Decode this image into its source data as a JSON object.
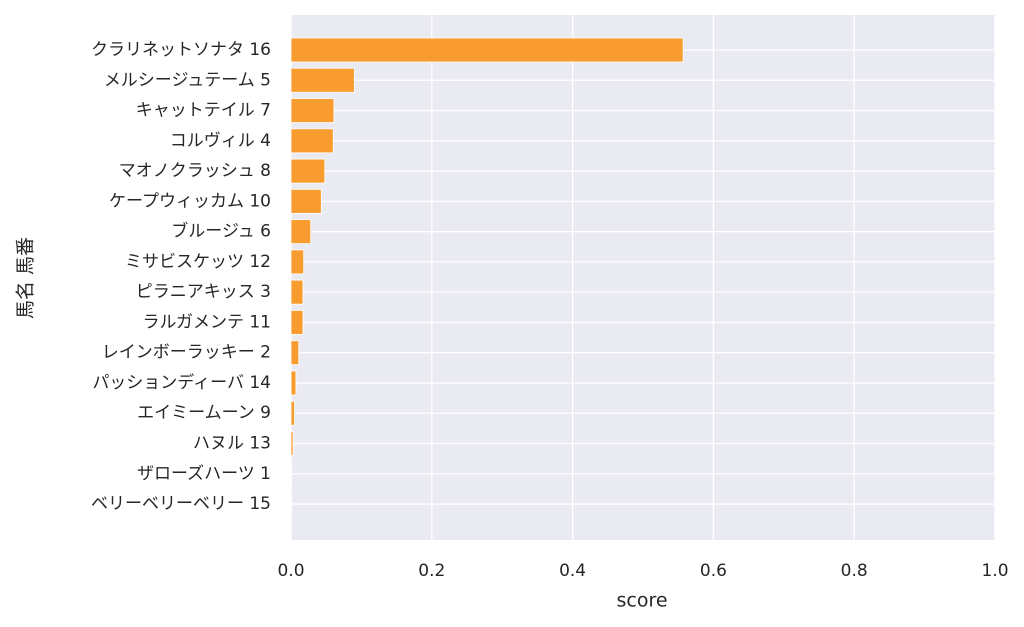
{
  "chart_data": {
    "type": "barh",
    "xlabel": "score",
    "ylabel": "馬名 馬番",
    "categories": [
      "クラリネットソナタ 16",
      "メルシージュテーム 5",
      "キャットテイル 7",
      "コルヴィル 4",
      "マオノクラッシュ 8",
      "ケープウィッカム 10",
      "ブルージュ 6",
      "ミサビスケッツ 12",
      "ピラニアキッス 3",
      "ラルガメンテ 11",
      "レインボーラッキー 2",
      "パッションディーバ 14",
      "エイミームーン 9",
      "ハヌル 13",
      "ザローズハーツ 1",
      "ベリーベリーベリー 15"
    ],
    "values": [
      0.557,
      0.09,
      0.061,
      0.06,
      0.048,
      0.043,
      0.028,
      0.018,
      0.017,
      0.017,
      0.011,
      0.007,
      0.005,
      0.003,
      0.001,
      0.0005
    ],
    "color": "#f89c30",
    "xlim": [
      0,
      1
    ],
    "xticks": [
      {
        "value": 0,
        "label": "0.0"
      },
      0.2,
      0.4,
      0.6,
      0.8,
      {
        "value": 1,
        "label": "1.0"
      }
    ],
    "grid": true
  }
}
